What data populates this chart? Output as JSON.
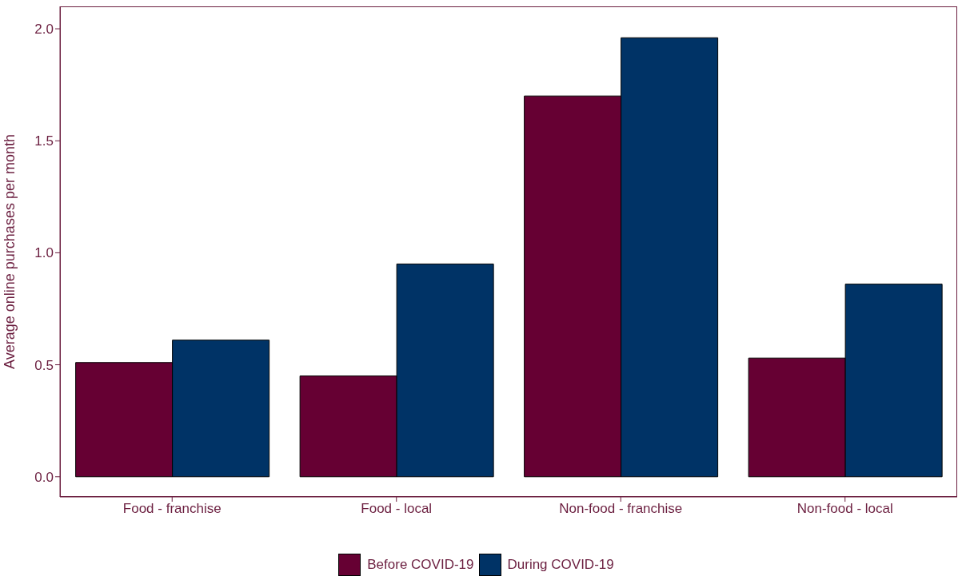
{
  "chart_data": {
    "type": "bar",
    "ylabel": "Average online purchases per month",
    "categories": [
      "Food - franchise",
      "Food - local",
      "Non-food - franchise",
      "Non-food - local"
    ],
    "series": [
      {
        "name": "Before COVID-19",
        "color": "#660033",
        "values": [
          0.51,
          0.45,
          1.7,
          0.53
        ]
      },
      {
        "name": "During COVID-19",
        "color": "#003366",
        "values": [
          0.61,
          0.95,
          1.96,
          0.86
        ]
      }
    ],
    "ylim": [
      -0.09,
      2.1
    ],
    "yticks": [
      {
        "value": 0,
        "label": "0.0"
      },
      {
        "value": 0.5,
        "label": "0.5"
      },
      {
        "value": 1,
        "label": "1.0"
      },
      {
        "value": 1.5,
        "label": "1.5"
      },
      {
        "value": 2,
        "label": "2.0"
      }
    ],
    "grid": false,
    "legend": "bottom"
  }
}
